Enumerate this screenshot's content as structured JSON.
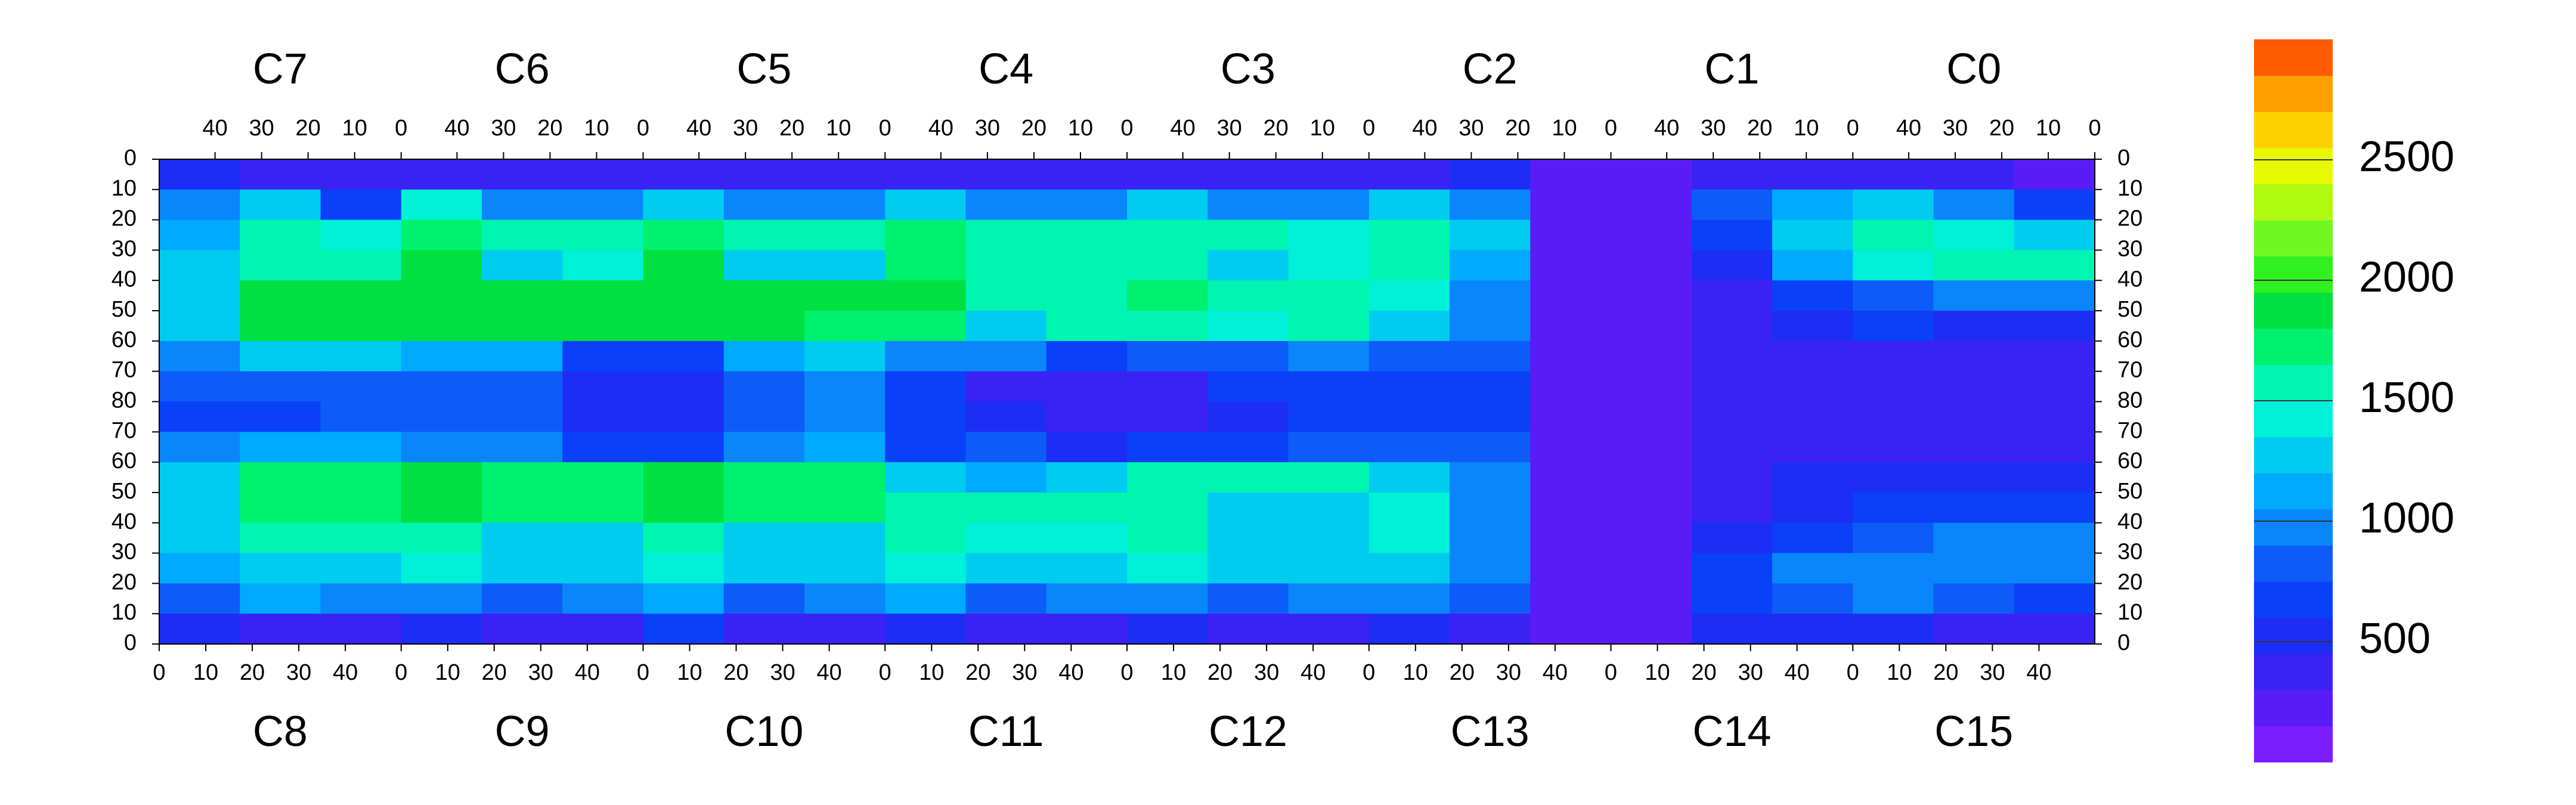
{
  "chart_data": {
    "type": "heatmap",
    "top_chips": [
      "C7",
      "C6",
      "C5",
      "C4",
      "C3",
      "C2",
      "C1",
      "C0"
    ],
    "bottom_chips": [
      "C8",
      "C9",
      "C10",
      "C11",
      "C12",
      "C13",
      "C14",
      "C15"
    ],
    "chip_xlim": [
      0,
      52
    ],
    "chip_xticks": [
      0,
      10,
      20,
      30,
      40
    ],
    "top_x_reversed": true,
    "half_ylim": [
      0,
      80
    ],
    "yticks": [
      0,
      10,
      20,
      30,
      40,
      50,
      60,
      70,
      80
    ],
    "zlim": [
      0,
      3000
    ],
    "colorbar_ticks": [
      500,
      1000,
      1500,
      2000,
      2500
    ],
    "colors": [
      "#7a1dfc",
      "#5a1cf6",
      "#3a22f4",
      "#1c2ef6",
      "#0a40f8",
      "#0d5cf8",
      "#0a86fb",
      "#00aaff",
      "#00ccf0",
      "#00f0d8",
      "#00f5b0",
      "#00f070",
      "#00e040",
      "#30f020",
      "#70f820",
      "#b0fa10",
      "#e8f800",
      "#ffd000",
      "#ffa000",
      "#ff5a00"
    ],
    "z": [
      [
        500,
        300,
        300,
        400,
        300,
        300,
        400,
        300,
        300,
        400,
        300,
        300,
        400,
        300,
        300,
        400,
        500,
        200,
        150,
        300,
        300,
        400,
        300,
        250
      ],
      [
        900,
        1300,
        700,
        1400,
        900,
        1000,
        1300,
        900,
        1000,
        1300,
        900,
        1000,
        1200,
        900,
        1000,
        1200,
        1000,
        200,
        150,
        800,
        1100,
        1300,
        900,
        700
      ],
      [
        1100,
        1500,
        1400,
        1700,
        1600,
        1500,
        1700,
        1600,
        1500,
        1700,
        1500,
        1500,
        1600,
        1500,
        1400,
        1500,
        1200,
        150,
        150,
        700,
        1300,
        1500,
        1400,
        1300
      ],
      [
        1200,
        1600,
        1600,
        1800,
        1300,
        1400,
        1800,
        1300,
        1300,
        1700,
        1500,
        1500,
        1600,
        1300,
        1400,
        1500,
        1100,
        150,
        150,
        500,
        1100,
        1400,
        1600,
        1500
      ],
      [
        1300,
        1800,
        1800,
        1900,
        1800,
        1800,
        1900,
        1800,
        1800,
        1800,
        1600,
        1600,
        1700,
        1500,
        1600,
        1400,
        1000,
        150,
        150,
        400,
        600,
        800,
        900,
        900
      ],
      [
        1300,
        1800,
        1800,
        1900,
        1800,
        1800,
        1900,
        1800,
        1700,
        1700,
        1300,
        1500,
        1600,
        1400,
        1500,
        1300,
        900,
        150,
        150,
        300,
        500,
        600,
        500,
        500
      ],
      [
        1000,
        1300,
        1300,
        1100,
        1100,
        600,
        700,
        1100,
        1200,
        1000,
        900,
        700,
        800,
        800,
        900,
        800,
        800,
        150,
        150,
        350,
        400,
        400,
        400,
        400
      ],
      [
        800,
        800,
        800,
        800,
        800,
        500,
        500,
        800,
        900,
        600,
        400,
        400,
        400,
        600,
        700,
        700,
        700,
        150,
        150,
        300,
        300,
        300,
        300,
        300
      ],
      [
        700,
        700,
        800,
        800,
        800,
        500,
        500,
        800,
        900,
        600,
        450,
        400,
        400,
        500,
        600,
        700,
        700,
        150,
        150,
        300,
        300,
        300,
        300,
        300
      ],
      [
        900,
        1100,
        1100,
        1000,
        1000,
        600,
        600,
        1000,
        1100,
        700,
        800,
        500,
        600,
        700,
        800,
        800,
        800,
        150,
        150,
        350,
        400,
        400,
        400,
        400
      ],
      [
        1300,
        1700,
        1700,
        1800,
        1700,
        1700,
        1800,
        1700,
        1700,
        1300,
        1100,
        1300,
        1500,
        1500,
        1500,
        1300,
        900,
        150,
        150,
        300,
        500,
        500,
        500,
        500
      ],
      [
        1300,
        1700,
        1700,
        1800,
        1700,
        1700,
        1800,
        1700,
        1700,
        1600,
        1500,
        1500,
        1600,
        1200,
        1300,
        1400,
        900,
        150,
        150,
        400,
        500,
        600,
        600,
        600
      ],
      [
        1200,
        1500,
        1500,
        1600,
        1200,
        1300,
        1600,
        1200,
        1300,
        1500,
        1400,
        1400,
        1500,
        1200,
        1300,
        1400,
        1000,
        150,
        150,
        500,
        700,
        800,
        900,
        900
      ],
      [
        1100,
        1300,
        1300,
        1400,
        1300,
        1300,
        1400,
        1300,
        1300,
        1400,
        1300,
        1300,
        1400,
        1300,
        1300,
        1300,
        1000,
        150,
        150,
        700,
        900,
        1000,
        1000,
        900
      ],
      [
        800,
        1100,
        900,
        1000,
        800,
        900,
        1100,
        800,
        900,
        1100,
        800,
        900,
        1000,
        800,
        900,
        900,
        800,
        150,
        150,
        700,
        800,
        900,
        800,
        700
      ],
      [
        500,
        300,
        400,
        500,
        400,
        400,
        600,
        400,
        400,
        500,
        400,
        400,
        500,
        400,
        400,
        500,
        400,
        200,
        200,
        500,
        500,
        500,
        400,
        400
      ]
    ]
  }
}
